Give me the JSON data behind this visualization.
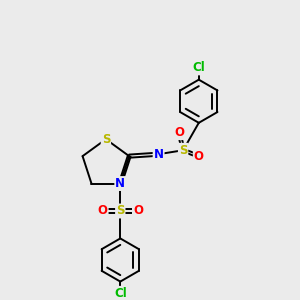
{
  "bg_color": "#ebebeb",
  "atom_colors": {
    "S": "#b8b800",
    "N": "#0000ff",
    "O": "#ff0000",
    "Cl": "#00bb00",
    "C": "#000000"
  },
  "bond_color": "#000000",
  "bond_lw": 1.4
}
